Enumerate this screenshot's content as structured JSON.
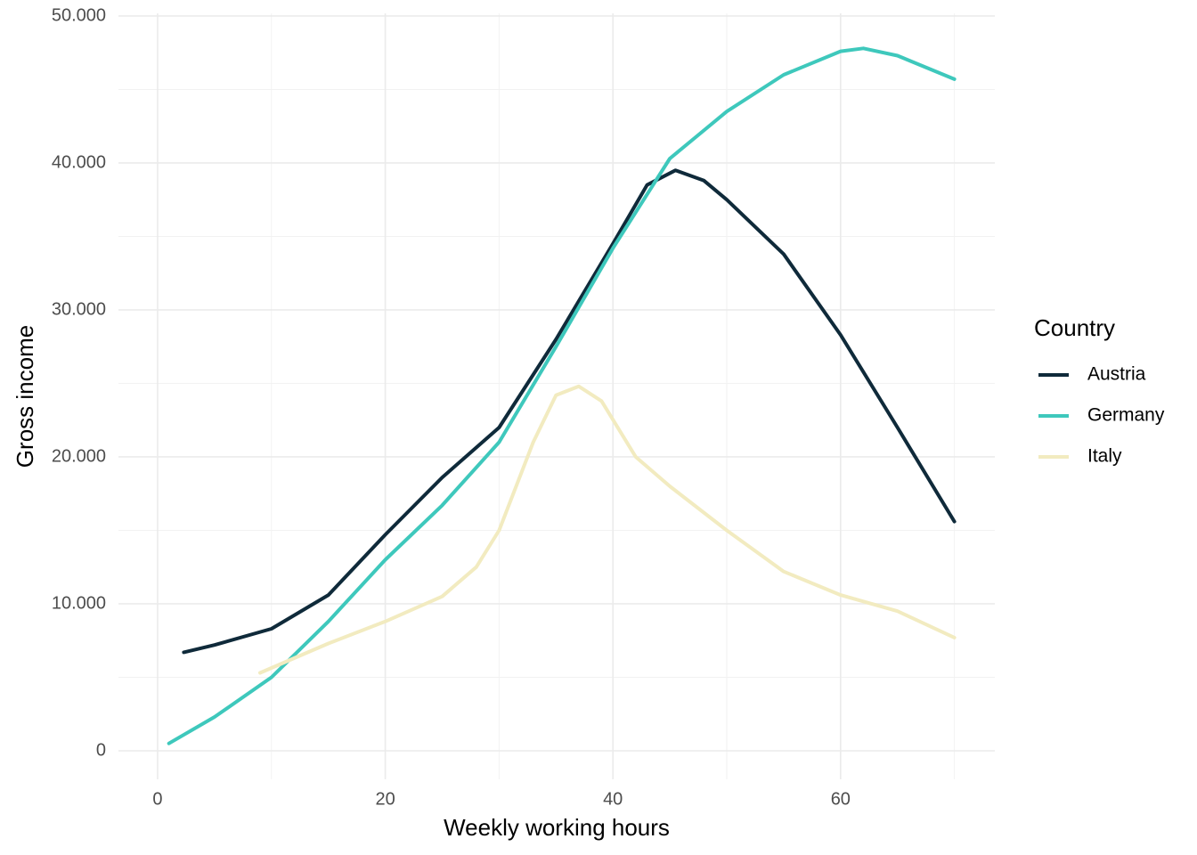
{
  "chart_data": {
    "type": "line",
    "x_label": "Weekly working hours",
    "y_label": "Gross income",
    "legend_title": "Country",
    "legend": "right",
    "xlim": [
      -3.44,
      73.55
    ],
    "xticks": [
      0,
      20,
      40,
      60
    ],
    "x_minor_ticks": [
      10,
      30,
      50,
      70
    ],
    "ylim": [
      -1940,
      50180
    ],
    "yticks": [
      0,
      {
        "value": 10000,
        "label": "10.000"
      },
      {
        "value": 20000,
        "label": "20.000"
      },
      {
        "value": 30000,
        "label": "30.000"
      },
      {
        "value": 40000,
        "label": "40.000"
      },
      {
        "value": 50000,
        "label": "50.000"
      }
    ],
    "y_minor_ticks": [
      5000,
      15000,
      25000,
      35000,
      45000
    ],
    "grid": true,
    "series": [
      {
        "name": "Austria",
        "color": "#0f2a3a",
        "x": [
          2.3,
          5,
          10,
          15,
          20,
          25,
          30,
          35,
          40,
          43,
          45.5,
          48,
          50,
          55,
          60,
          65,
          70
        ],
        "values": [
          6700,
          7200,
          8300,
          10600,
          14700,
          18600,
          22000,
          28000,
          34500,
          38500,
          39500,
          38800,
          37500,
          33800,
          28300,
          22000,
          15600
        ]
      },
      {
        "name": "Germany",
        "color": "#3ec8bc",
        "x": [
          1,
          5,
          10,
          15,
          20,
          25,
          30,
          35,
          40,
          45,
          50,
          55,
          60,
          62,
          65,
          70
        ],
        "values": [
          500,
          2300,
          5000,
          8800,
          13000,
          16700,
          21000,
          27500,
          34200,
          40300,
          43500,
          46000,
          47600,
          47800,
          47300,
          45700
        ]
      },
      {
        "name": "Italy",
        "color": "#f2ebc0",
        "x": [
          9,
          12,
          15,
          20,
          25,
          28,
          30,
          33,
          35,
          37,
          39,
          42,
          45,
          50,
          55,
          60,
          65,
          70
        ],
        "values": [
          5300,
          6300,
          7300,
          8800,
          10500,
          12500,
          15000,
          21000,
          24200,
          24800,
          23800,
          20000,
          18000,
          15000,
          12200,
          10600,
          9500,
          7700
        ]
      }
    ]
  }
}
